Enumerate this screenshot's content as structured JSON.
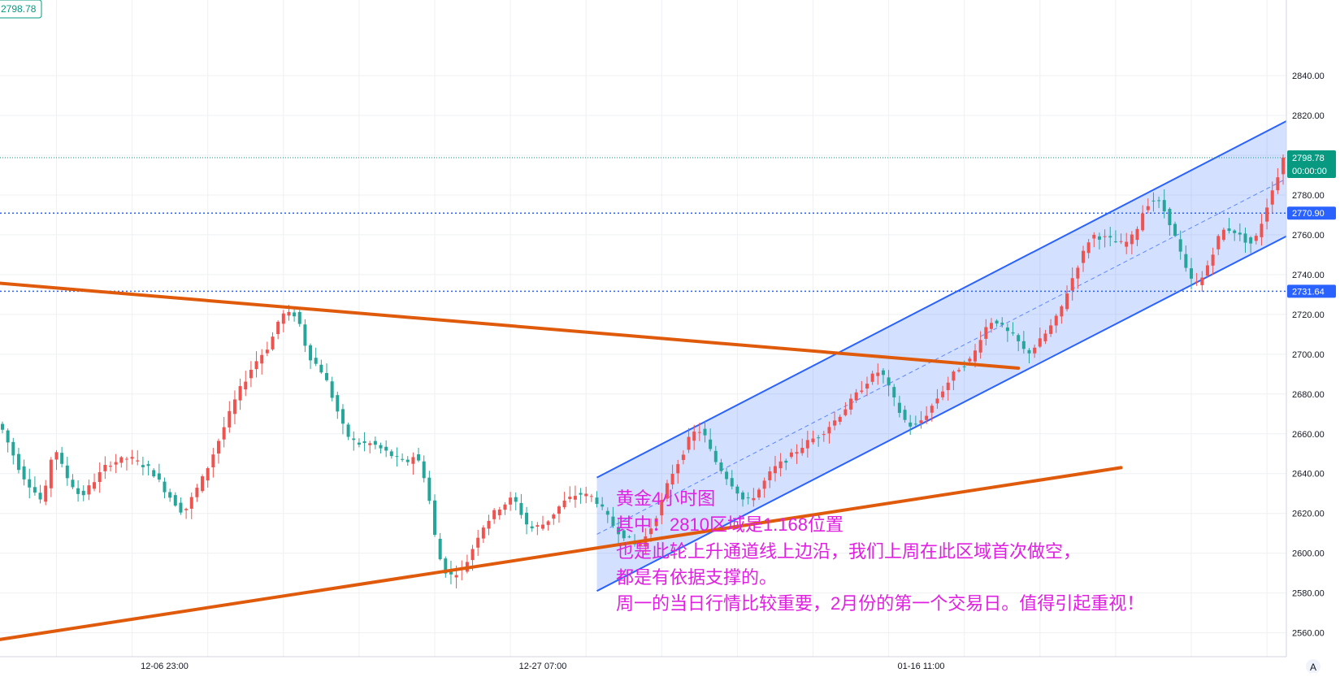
{
  "colors": {
    "up": "#ef5350",
    "down": "#26a69a",
    "trend": "#e05a0c",
    "channel_line": "#2962ff",
    "channel_fill": "#2962ff",
    "level": "#2962ff",
    "price_line": "#089981",
    "annotation": "#e020e0",
    "grid": "#eef0f3"
  },
  "header": {
    "price_tag": "2798.78"
  },
  "annotation": {
    "lines": [
      "黄金4小时图",
      "其中：2810区域是1.168位置",
      "也是此轮上升通道线上边沿，我们上周在此区域首次做空，",
      "都是有依据支撑的。",
      "周一的当日行情比较重要，2月份的第一个交易日。值得引起重视！"
    ]
  },
  "axis": {
    "corner_label": "A"
  },
  "chart_data": {
    "type": "candlestick",
    "instrument_note": "黄金4小时图",
    "ylim": [
      2548,
      2878
    ],
    "y_ticks": [
      2560,
      2580,
      2600,
      2620,
      2640,
      2660,
      2680,
      2700,
      2720,
      2740,
      2760,
      2780,
      2800,
      2820,
      2840
    ],
    "y_tick_labels": [
      "2560.00",
      "2580.00",
      "2600.00",
      "2620.00",
      "2640.00",
      "2660.00",
      "2680.00",
      "2700.00",
      "2720.00",
      "2740.00",
      "2760.00",
      "2780.00",
      "2800.00",
      "2820.00",
      "2840.00"
    ],
    "x_tick_labels": [
      {
        "bar": 30,
        "label": "12-06 23:00"
      },
      {
        "bar": 100,
        "label": "12-27 07:00"
      },
      {
        "bar": 170,
        "label": "01-16 11:00"
      }
    ],
    "bars_count": 238,
    "price_line": {
      "value": 2798.78,
      "label": "2798.78",
      "countdown": "00:00:00"
    },
    "levels": [
      {
        "value": 2770.9,
        "label": "2770.90"
      },
      {
        "value": 2731.64,
        "label": "2731.64"
      }
    ],
    "keypoints": [
      [
        0,
        2665
      ],
      [
        4,
        2640
      ],
      [
        8,
        2625
      ],
      [
        10,
        2655
      ],
      [
        12,
        2640
      ],
      [
        15,
        2628
      ],
      [
        20,
        2645
      ],
      [
        24,
        2648
      ],
      [
        28,
        2642
      ],
      [
        31,
        2630
      ],
      [
        34,
        2620
      ],
      [
        38,
        2640
      ],
      [
        41,
        2660
      ],
      [
        44,
        2680
      ],
      [
        47,
        2695
      ],
      [
        50,
        2705
      ],
      [
        52,
        2720
      ],
      [
        55,
        2720
      ],
      [
        57,
        2700
      ],
      [
        60,
        2690
      ],
      [
        62,
        2675
      ],
      [
        64,
        2660
      ],
      [
        66,
        2655
      ],
      [
        69,
        2655
      ],
      [
        72,
        2650
      ],
      [
        75,
        2645
      ],
      [
        77,
        2650
      ],
      [
        79,
        2635
      ],
      [
        81,
        2600
      ],
      [
        83,
        2588
      ],
      [
        86,
        2593
      ],
      [
        89,
        2612
      ],
      [
        92,
        2622
      ],
      [
        95,
        2628
      ],
      [
        98,
        2612
      ],
      [
        101,
        2615
      ],
      [
        104,
        2625
      ],
      [
        107,
        2630
      ],
      [
        110,
        2628
      ],
      [
        112,
        2620
      ],
      [
        114,
        2612
      ],
      [
        116,
        2608
      ],
      [
        118,
        2603
      ],
      [
        120,
        2610
      ],
      [
        122,
        2622
      ],
      [
        124,
        2638
      ],
      [
        126,
        2648
      ],
      [
        128,
        2660
      ],
      [
        130,
        2662
      ],
      [
        132,
        2648
      ],
      [
        134,
        2640
      ],
      [
        136,
        2633
      ],
      [
        138,
        2625
      ],
      [
        140,
        2630
      ],
      [
        143,
        2642
      ],
      [
        146,
        2648
      ],
      [
        149,
        2655
      ],
      [
        152,
        2660
      ],
      [
        155,
        2668
      ],
      [
        158,
        2678
      ],
      [
        161,
        2688
      ],
      [
        163,
        2692
      ],
      [
        165,
        2680
      ],
      [
        167,
        2668
      ],
      [
        169,
        2663
      ],
      [
        171,
        2668
      ],
      [
        174,
        2680
      ],
      [
        177,
        2692
      ],
      [
        180,
        2698
      ],
      [
        182,
        2712
      ],
      [
        184,
        2718
      ],
      [
        186,
        2712
      ],
      [
        188,
        2708
      ],
      [
        190,
        2700
      ],
      [
        192,
        2705
      ],
      [
        194,
        2712
      ],
      [
        196,
        2720
      ],
      [
        198,
        2735
      ],
      [
        200,
        2748
      ],
      [
        202,
        2760
      ],
      [
        205,
        2758
      ],
      [
        208,
        2755
      ],
      [
        210,
        2760
      ],
      [
        212,
        2775
      ],
      [
        214,
        2778
      ],
      [
        216,
        2770
      ],
      [
        218,
        2755
      ],
      [
        220,
        2738
      ],
      [
        222,
        2735
      ],
      [
        224,
        2748
      ],
      [
        226,
        2762
      ],
      [
        228,
        2763
      ],
      [
        230,
        2758
      ],
      [
        232,
        2755
      ],
      [
        234,
        2770
      ],
      [
        236,
        2788
      ],
      [
        238,
        2793
      ],
      [
        240,
        2800
      ],
      [
        242,
        2810
      ],
      [
        243,
        2798
      ]
    ],
    "trendlines": [
      {
        "name": "upper",
        "from": [
          -2,
          2736
        ],
        "to": [
          188,
          2693
        ]
      },
      {
        "name": "lower",
        "from": [
          -2,
          2556
        ],
        "to": [
          207,
          2643
        ]
      }
    ],
    "channel": {
      "upper": {
        "from": [
          110,
          2638
        ],
        "to": [
          261,
          2850
        ]
      },
      "lower": {
        "from": [
          110,
          2581
        ],
        "to": [
          261,
          2792
        ]
      }
    }
  }
}
